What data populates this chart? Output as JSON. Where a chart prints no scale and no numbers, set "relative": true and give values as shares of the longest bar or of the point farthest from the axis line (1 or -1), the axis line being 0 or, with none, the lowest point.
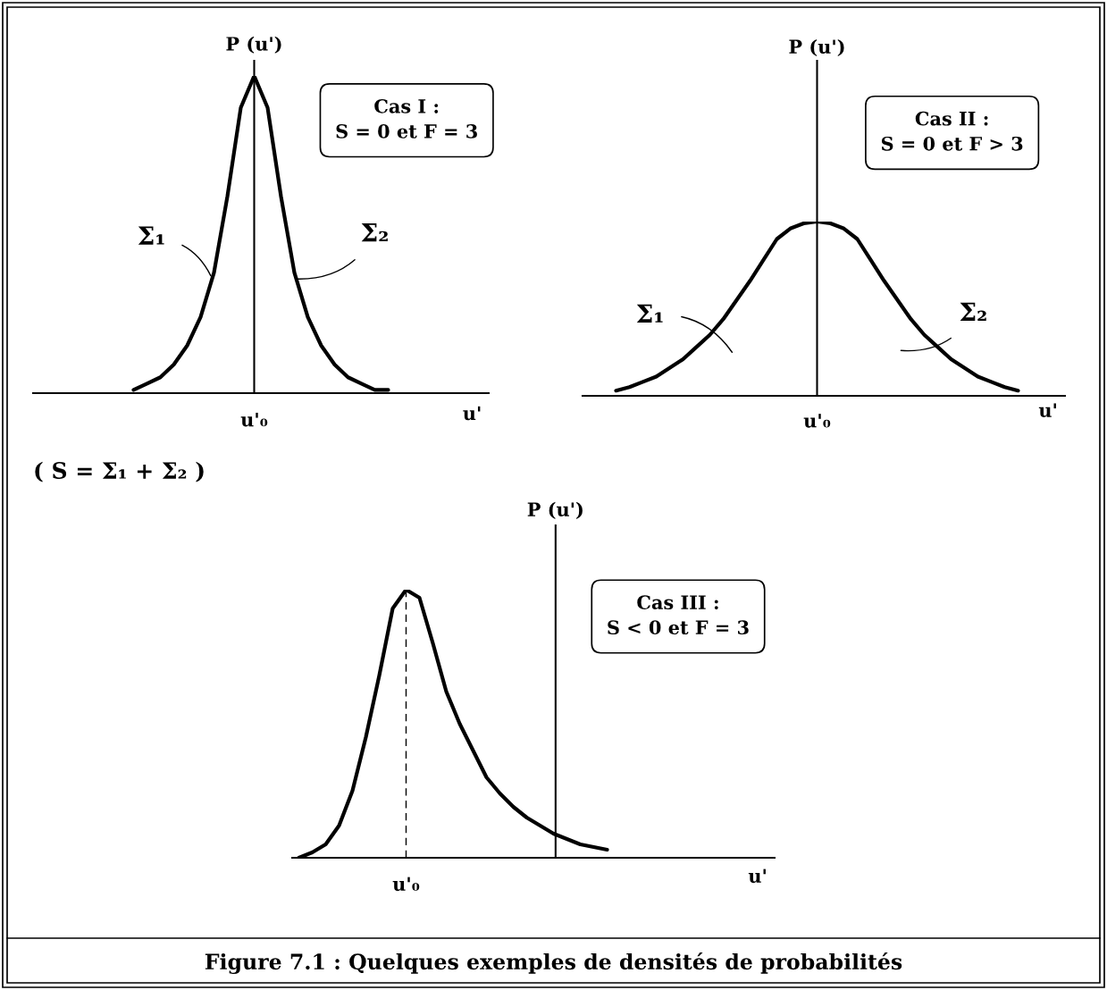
{
  "chart_data": [
    {
      "type": "line",
      "relative": true,
      "ylabel": "P (u')",
      "xlabel": "u'",
      "color": "#000000",
      "categories": [
        null,
        null,
        null,
        null,
        null,
        null,
        null,
        null,
        null,
        null,
        null,
        null,
        null,
        null,
        null,
        null,
        null,
        null,
        null,
        null,
        null,
        null,
        null,
        null,
        null,
        null,
        null,
        null,
        null,
        null,
        null,
        null,
        null,
        null
      ],
      "values": [
        null,
        null,
        null,
        null,
        null,
        null,
        null,
        0.01,
        0.03,
        0.05,
        0.09,
        0.15,
        0.24,
        0.38,
        0.62,
        0.9,
        1.0,
        0.9,
        0.62,
        0.38,
        0.24,
        0.15,
        0.09,
        0.05,
        0.03,
        0.01,
        0.01,
        null,
        null,
        null,
        null,
        null,
        null,
        null
      ],
      "annotations": [
        "u'₀",
        "Cas I :\nS = 0 et F = 3",
        "Σ₁",
        "Σ₂",
        "( S = Σ₁ + Σ₂ )"
      ]
    },
    {
      "type": "line",
      "relative": true,
      "ylabel": "P (u')",
      "xlabel": "u'",
      "color": "#000000",
      "categories": [
        null,
        null,
        null,
        null,
        null,
        null,
        null,
        null,
        null,
        null,
        null,
        null,
        null,
        null,
        null,
        null,
        null,
        null,
        null,
        null,
        null,
        null,
        null,
        null,
        null,
        null,
        null,
        null,
        null,
        null,
        null,
        null,
        null,
        null,
        null,
        null
      ],
      "values": [
        null,
        null,
        0.03,
        0.05,
        0.08,
        0.11,
        0.16,
        0.21,
        0.28,
        0.35,
        0.44,
        0.55,
        0.66,
        0.78,
        0.9,
        0.96,
        0.99,
        1.0,
        0.99,
        0.96,
        0.9,
        0.78,
        0.66,
        0.55,
        0.44,
        0.35,
        0.28,
        0.21,
        0.16,
        0.11,
        0.08,
        0.05,
        0.03,
        null,
        null,
        null
      ],
      "annotations": [
        "u'₀",
        "Cas II :\nS = 0 et F > 3",
        "Σ₁",
        "Σ₂"
      ]
    },
    {
      "type": "line",
      "relative": true,
      "ylabel": "P (u')",
      "xlabel": "u'",
      "color": "#000000",
      "categories": [
        null,
        null,
        null,
        null,
        null,
        null,
        null,
        null,
        null,
        null,
        null,
        null,
        null,
        null,
        null,
        null,
        null,
        null,
        null,
        null,
        null,
        null,
        null,
        null,
        null,
        null,
        null,
        null,
        null,
        null,
        null,
        null,
        null,
        null,
        null,
        null
      ],
      "values": [
        0,
        0.02,
        0.05,
        0.12,
        0.25,
        0.45,
        0.68,
        0.93,
        1.0,
        0.97,
        0.8,
        0.62,
        0.5,
        0.4,
        0.3,
        0.24,
        0.19,
        0.15,
        0.12,
        0.09,
        0.07,
        0.05,
        0.04,
        0.03,
        null,
        null,
        null,
        null,
        null,
        null,
        null,
        null,
        null,
        null,
        null,
        null
      ],
      "annotations": [
        "u'₀",
        "Cas III :\nS < 0 et F = 3",
        "Figure 7.1 : Quelques exemples de densités de probabilités"
      ]
    }
  ]
}
